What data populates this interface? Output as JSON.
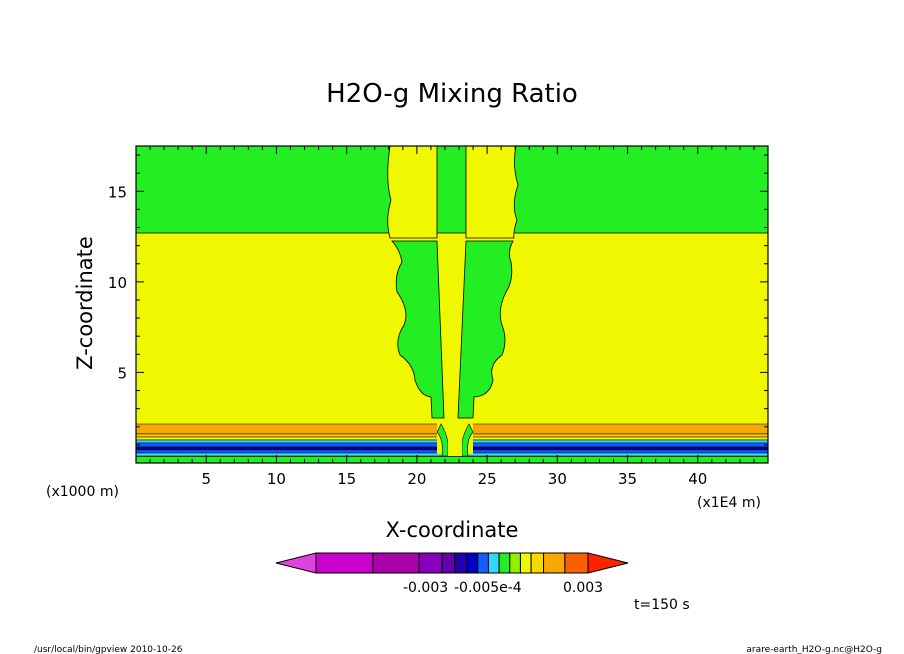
{
  "chart_data": {
    "type": "heatmap",
    "title": "H2O-g Mixing Ratio",
    "xlabel": "X-coordinate",
    "ylabel": "Z-coordinate",
    "x_unit_left": "(x1000 m)",
    "x_unit_right": "(x1E4 m)",
    "xlim": [
      0,
      45
    ],
    "ylim": [
      0,
      17.5
    ],
    "x_ticks": [
      5,
      10,
      15,
      20,
      25,
      30,
      35,
      40
    ],
    "x_tick_labels": [
      "5",
      "10",
      "15",
      "20",
      "25",
      "30",
      "35",
      "40"
    ],
    "y_ticks": [
      5,
      10,
      15
    ],
    "y_tick_labels": [
      "5",
      "10",
      "15"
    ],
    "colors": {
      "green": "#22ee22",
      "yellow": "#f0f800",
      "orange": "#f8a800",
      "lightorange": "#fcd000",
      "blue": "#1060ff",
      "darkblue": "#0000a0",
      "cyan": "#30d8ff"
    },
    "regions": [
      {
        "color": "yellow",
        "x": [
          0,
          45
        ],
        "y": [
          0,
          12.7
        ]
      },
      {
        "color": "green",
        "x": [
          0,
          45
        ],
        "y": [
          12.7,
          17.5
        ]
      },
      {
        "color": "green",
        "x": [
          0,
          45
        ],
        "y": [
          0,
          0.35
        ]
      }
    ],
    "colorbar": {
      "colors": [
        "#cc00cc",
        "#aa00aa",
        "#8800bb",
        "#6600aa",
        "#2200aa",
        "#0000cc",
        "#1060ff",
        "#30d8ff",
        "#22ee22",
        "#90f000",
        "#f0f800",
        "#f8d800",
        "#f8a800",
        "#f86000",
        "#ff2200"
      ],
      "labels": [
        "-0.003",
        "-0.005e-4",
        "0.003"
      ]
    },
    "time_label": "t=150 s"
  },
  "footer": {
    "left": "/usr/local/bin/gpview  2010-10-26",
    "right": "arare-earth_H2O-g.nc@H2O-g"
  }
}
